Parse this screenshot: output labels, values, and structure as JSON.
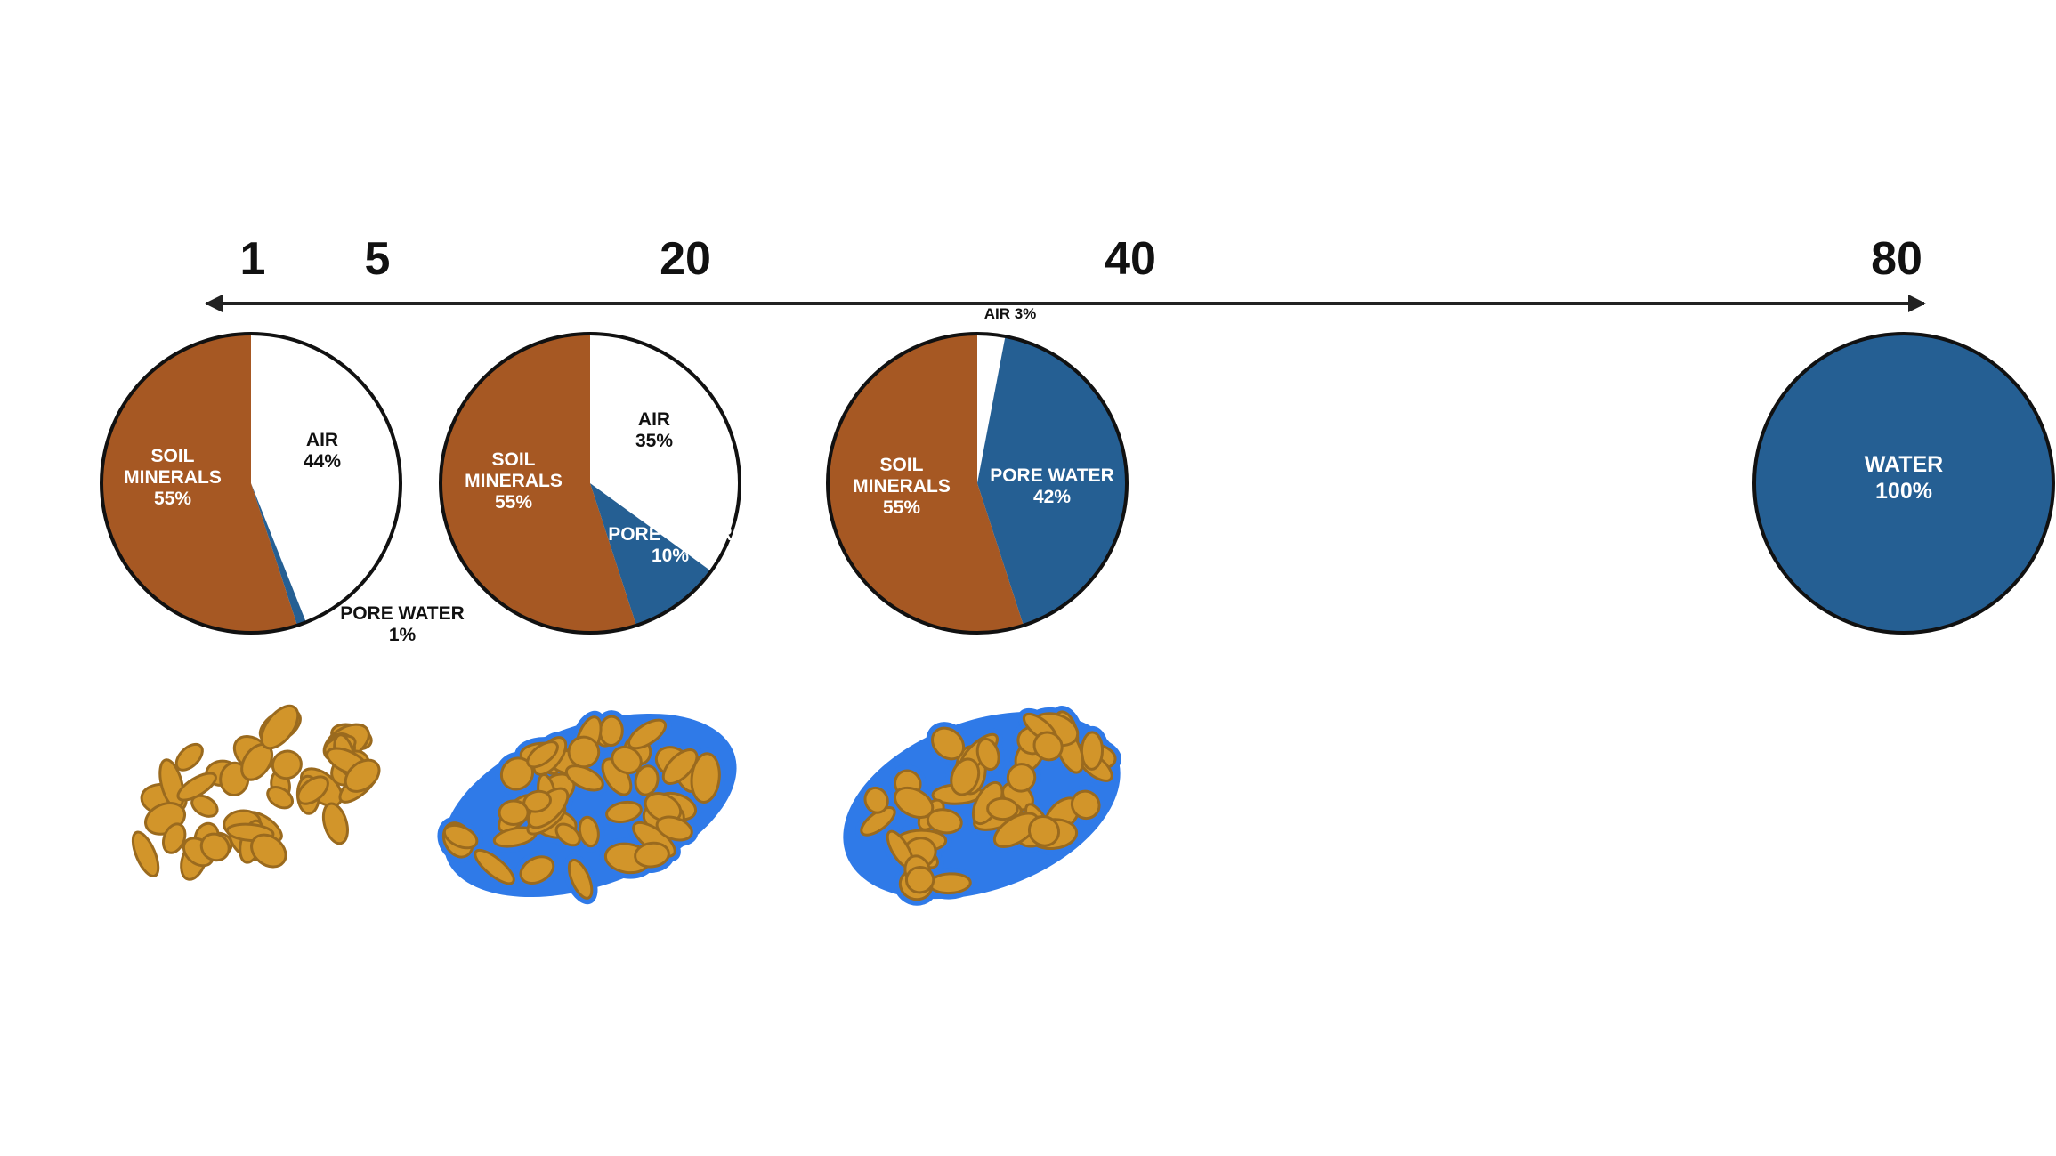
{
  "chart_data": {
    "type": "pie",
    "title": "",
    "axis": {
      "ticks": [
        "1",
        "5",
        "20",
        "40",
        "80"
      ],
      "arrow": "double-headed"
    },
    "pies": [
      {
        "slices": [
          {
            "key": "minerals",
            "label": "SOIL\nMINERALS\n55%",
            "value": 55,
            "color": "#a65823"
          },
          {
            "key": "water",
            "label": "PORE WATER\n1%",
            "value": 1,
            "color": "#255f93"
          },
          {
            "key": "air",
            "label": "AIR\n44%",
            "value": 44,
            "color": "#ffffff"
          }
        ]
      },
      {
        "slices": [
          {
            "key": "minerals",
            "label": "SOIL\nMINERALS\n55%",
            "value": 55,
            "color": "#a65823"
          },
          {
            "key": "water",
            "label": "PORE WATER\n10%",
            "value": 10,
            "color": "#255f93"
          },
          {
            "key": "air",
            "label": "AIR\n35%",
            "value": 35,
            "color": "#ffffff"
          }
        ]
      },
      {
        "slices": [
          {
            "key": "minerals",
            "label": "SOIL\nMINERALS\n55%",
            "value": 55,
            "color": "#a65823"
          },
          {
            "key": "water",
            "label": "PORE WATER\n42%",
            "value": 42,
            "color": "#255f93"
          },
          {
            "key": "air",
            "label": "AIR 3%",
            "value": 3,
            "color": "#ffffff"
          }
        ]
      },
      {
        "slices": [
          {
            "key": "water",
            "label": "WATER\n100%",
            "value": 100,
            "color": "#255f93"
          }
        ]
      }
    ]
  },
  "illustration_colors": {
    "grain": "#d2952a",
    "grain_outline": "#9a6a1e",
    "water": "#2f7ae8"
  }
}
